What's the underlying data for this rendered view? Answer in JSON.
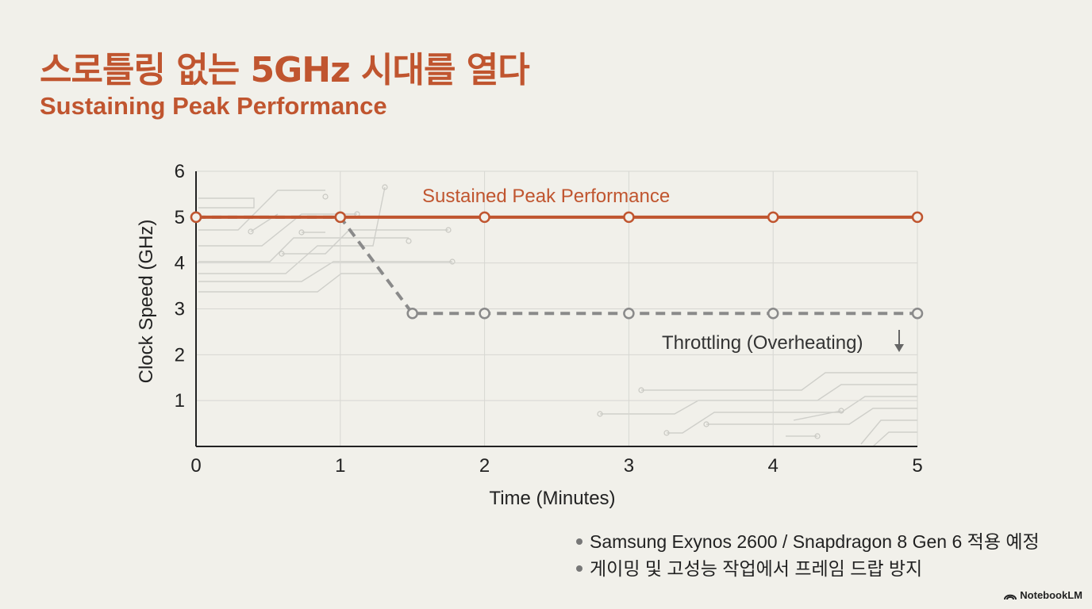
{
  "slide": {
    "title": "스로틀링 없는 5GHz 시대를 열다",
    "subtitle": "Sustaining Peak Performance",
    "notes": [
      "Samsung Exynos 2600 / Snapdragon 8 Gen 6 적용 예정",
      "게이밍 및 고성능 작업에서 프레임 드랍 방지"
    ],
    "brand": "NotebookLM",
    "brand_icon": "notebooklm-logo-icon"
  },
  "chart_data": {
    "type": "line",
    "xlabel": "Time (Minutes)",
    "ylabel": "Clock Speed (GHz)",
    "xlim": [
      0,
      5
    ],
    "ylim": [
      0,
      6
    ],
    "xticks": [
      0,
      1,
      2,
      3,
      4,
      5
    ],
    "yticks": [
      1,
      2,
      3,
      4,
      5,
      6
    ],
    "grid": true,
    "series": [
      {
        "name": "Sustained Peak Performance",
        "color": "#c0552f",
        "style": "solid",
        "points": [
          [
            0,
            5
          ],
          [
            1,
            5
          ],
          [
            2,
            5
          ],
          [
            3,
            5
          ],
          [
            4,
            5
          ],
          [
            5,
            5
          ]
        ]
      },
      {
        "name": "Throttling (Overheating)",
        "color": "#8a8a8a",
        "style": "dashed",
        "points": [
          [
            0,
            5
          ],
          [
            1,
            5
          ],
          [
            1.5,
            2.9
          ],
          [
            2,
            2.9
          ],
          [
            3,
            2.9
          ],
          [
            4,
            2.9
          ],
          [
            5,
            2.9
          ]
        ]
      }
    ],
    "annotations": [
      {
        "text": "Sustained Peak Performance",
        "series": 0
      },
      {
        "text": "Throttling (Overheating)",
        "series": 1,
        "icon": "down-arrow-icon"
      }
    ]
  }
}
